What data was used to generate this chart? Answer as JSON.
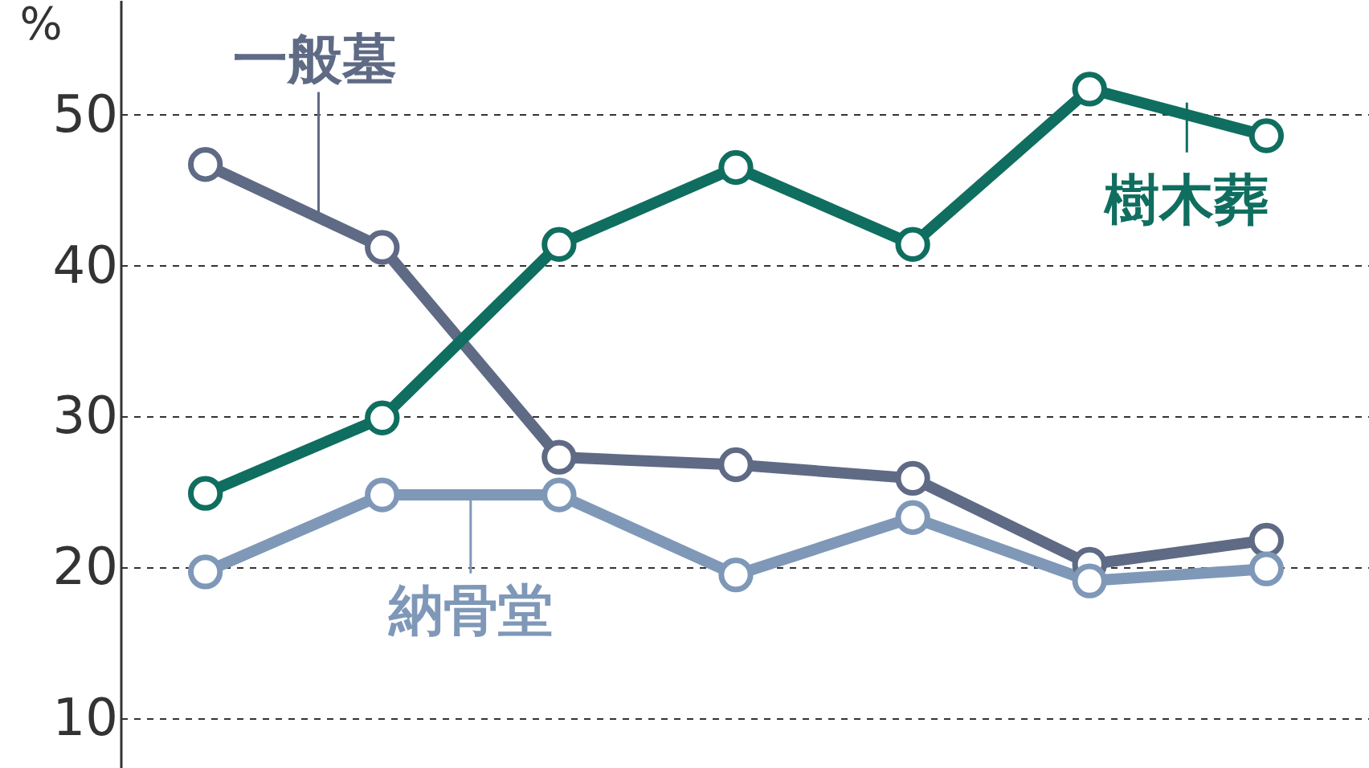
{
  "chart_data": {
    "type": "line",
    "ylabel": "%",
    "categories": [
      null,
      null,
      null,
      null,
      null,
      null,
      null
    ],
    "series": [
      {
        "name": "一般墓",
        "color": "#5f6a85",
        "values": [
          46.7,
          41.2,
          27.3,
          26.8,
          25.9,
          20.2,
          21.8
        ]
      },
      {
        "name": "樹木葬",
        "color": "#0f6e5f",
        "values": [
          24.9,
          29.9,
          41.4,
          46.5,
          41.4,
          51.7,
          48.6
        ]
      },
      {
        "name": "納骨堂",
        "color": "#7f98b8",
        "values": [
          19.7,
          24.8,
          24.8,
          19.5,
          23.3,
          19.1,
          19.9
        ]
      }
    ],
    "ylim": [
      6.7,
      57.6
    ],
    "yticks": [
      10,
      20,
      30,
      40,
      50
    ],
    "grid": "y",
    "marker": "circle",
    "line_style": "solid",
    "tick_labels": "y",
    "legend": "right"
  }
}
